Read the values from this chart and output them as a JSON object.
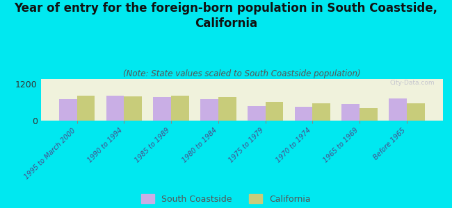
{
  "title": "Year of entry for the foreign-born population in South Coastside,\nCalifornia",
  "subtitle": "(Note: State values scaled to South Coastside population)",
  "categories": [
    "1995 to March 2000",
    "1990 to 1994",
    "1985 to 1989",
    "1980 to 1984",
    "1975 to 1979",
    "1970 to 1974",
    "1965 to 1969",
    "Before 1965"
  ],
  "south_coastside": [
    700,
    800,
    760,
    700,
    480,
    460,
    530,
    720
  ],
  "california": [
    820,
    790,
    810,
    760,
    610,
    560,
    410,
    560
  ],
  "ylim": [
    0,
    1350
  ],
  "yticks": [
    0,
    1200
  ],
  "bar_color_sc": "#c9aee5",
  "bar_color_ca": "#c8cc7a",
  "background_color": "#00e8f0",
  "plot_bg_color": "#f0f2dc",
  "legend_sc": "South Coastside",
  "legend_ca": "California",
  "title_fontsize": 12,
  "subtitle_fontsize": 8.5,
  "watermark": "City-Data.com"
}
